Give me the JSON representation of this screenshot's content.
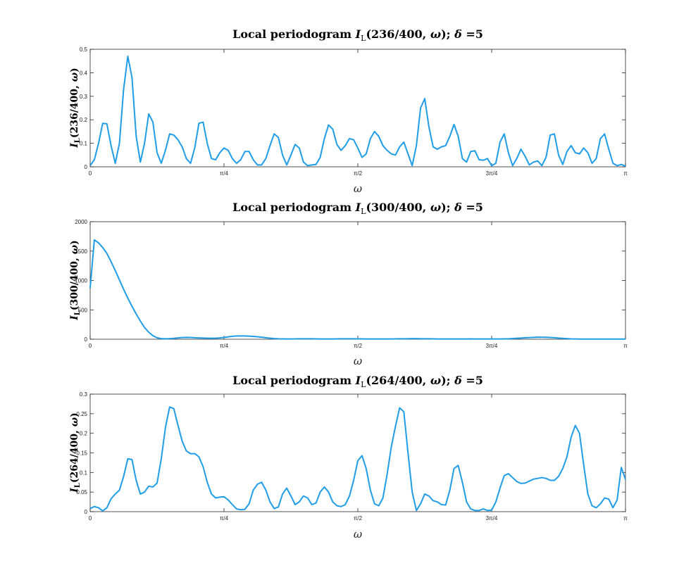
{
  "chart_data": [
    {
      "type": "line",
      "title": "Local periodogram I_L(236/400, ω);   δ =5",
      "ylabel": "I_L(236/400, ω)",
      "xlabel": "ω",
      "xlim": [
        0,
        3.1416
      ],
      "ylim": [
        0,
        0.5
      ],
      "xticks": [
        0,
        0.7854,
        1.5708,
        2.3562,
        3.1416
      ],
      "xtick_labels": [
        "0",
        "π/4",
        "π/2",
        "3π/4",
        "π"
      ],
      "yticks": [
        0,
        0.1,
        0.2,
        0.3,
        0.4,
        0.5
      ],
      "ytick_labels": [
        "0",
        "0.1",
        "0.2",
        "0.3",
        "0.4",
        "0.5"
      ],
      "grid": false,
      "color": "#1f9de8",
      "y": [
        0.005,
        0.03,
        0.1,
        0.185,
        0.183,
        0.09,
        0.015,
        0.1,
        0.33,
        0.47,
        0.38,
        0.13,
        0.02,
        0.1,
        0.225,
        0.19,
        0.06,
        0.015,
        0.07,
        0.14,
        0.135,
        0.115,
        0.085,
        0.035,
        0.015,
        0.08,
        0.185,
        0.19,
        0.1,
        0.035,
        0.03,
        0.06,
        0.08,
        0.07,
        0.035,
        0.015,
        0.03,
        0.065,
        0.065,
        0.03,
        0.008,
        0.008,
        0.035,
        0.09,
        0.14,
        0.125,
        0.05,
        0.008,
        0.05,
        0.095,
        0.08,
        0.02,
        0.005,
        0.008,
        0.01,
        0.04,
        0.12,
        0.178,
        0.16,
        0.095,
        0.07,
        0.09,
        0.12,
        0.115,
        0.08,
        0.04,
        0.055,
        0.12,
        0.15,
        0.13,
        0.09,
        0.07,
        0.055,
        0.05,
        0.085,
        0.105,
        0.055,
        0.005,
        0.09,
        0.25,
        0.29,
        0.17,
        0.085,
        0.075,
        0.085,
        0.09,
        0.13,
        0.18,
        0.13,
        0.035,
        0.02,
        0.065,
        0.068,
        0.03,
        0.028,
        0.035,
        0.005,
        0.015,
        0.105,
        0.14,
        0.06,
        0.005,
        0.035,
        0.075,
        0.045,
        0.008,
        0.02,
        0.025,
        0.005,
        0.04,
        0.135,
        0.14,
        0.05,
        0.01,
        0.065,
        0.09,
        0.06,
        0.055,
        0.08,
        0.06,
        0.015,
        0.035,
        0.12,
        0.14,
        0.075,
        0.015,
        0.005,
        0.01,
        0.003
      ]
    },
    {
      "type": "line",
      "title": "Local periodogram I_L(300/400, ω);   δ =5",
      "ylabel": "I_L(300/400, ω)",
      "xlabel": "ω",
      "xlim": [
        0,
        3.1416
      ],
      "ylim": [
        0,
        2000
      ],
      "xticks": [
        0,
        0.7854,
        1.5708,
        2.3562,
        3.1416
      ],
      "xtick_labels": [
        "0",
        "π/4",
        "π/2",
        "3π/4",
        "π"
      ],
      "yticks": [
        0,
        500,
        1000,
        1500,
        2000
      ],
      "ytick_labels": [
        "0",
        "500",
        "1000",
        "1500",
        "2000"
      ],
      "grid": false,
      "color": "#1f9de8",
      "y": [
        870,
        1690,
        1640,
        1560,
        1460,
        1320,
        1170,
        1010,
        850,
        700,
        560,
        430,
        310,
        200,
        120,
        60,
        25,
        10,
        8,
        10,
        15,
        22,
        28,
        32,
        30,
        26,
        22,
        20,
        18,
        17,
        18,
        22,
        30,
        40,
        50,
        55,
        56,
        55,
        52,
        48,
        42,
        34,
        26,
        18,
        12,
        8,
        6,
        5,
        5,
        6,
        7,
        8,
        8,
        7,
        6,
        5,
        5,
        4,
        5,
        6,
        7,
        8,
        8,
        7,
        6,
        6,
        5,
        5,
        5,
        5,
        4,
        4,
        5,
        6,
        7,
        8,
        9,
        10,
        10,
        9,
        8,
        7,
        6,
        5,
        5,
        5,
        5,
        4,
        4,
        5,
        5,
        6,
        5,
        5,
        4,
        4,
        4,
        4,
        5,
        6,
        8,
        12,
        16,
        20,
        25,
        29,
        32,
        34,
        35,
        33,
        30,
        26,
        20,
        15,
        10,
        6,
        4,
        3,
        3,
        3,
        3,
        3,
        3,
        3,
        3,
        3,
        3,
        3,
        3
      ]
    },
    {
      "type": "line",
      "title": "Local periodogram I_L(264/400, ω);   δ =5",
      "ylabel": "I_L(264/400, ω)",
      "xlabel": "ω",
      "xlim": [
        0,
        3.1416
      ],
      "ylim": [
        0,
        0.3
      ],
      "xticks": [
        0,
        0.7854,
        1.5708,
        2.3562,
        3.1416
      ],
      "xtick_labels": [
        "0",
        "π/4",
        "π/2",
        "3π/4",
        "π"
      ],
      "yticks": [
        0,
        0.05,
        0.1,
        0.15,
        0.2,
        0.25,
        0.3
      ],
      "ytick_labels": [
        "0",
        "0.05",
        "0.1",
        "0.15",
        "0.2",
        "0.25",
        "0.3"
      ],
      "grid": false,
      "color": "#1f9de8",
      "y": [
        0.008,
        0.013,
        0.01,
        0.002,
        0.01,
        0.033,
        0.045,
        0.055,
        0.09,
        0.135,
        0.133,
        0.08,
        0.045,
        0.05,
        0.065,
        0.063,
        0.073,
        0.135,
        0.215,
        0.267,
        0.263,
        0.22,
        0.18,
        0.155,
        0.148,
        0.148,
        0.14,
        0.115,
        0.075,
        0.045,
        0.035,
        0.037,
        0.038,
        0.03,
        0.018,
        0.007,
        0.005,
        0.006,
        0.02,
        0.055,
        0.07,
        0.075,
        0.055,
        0.025,
        0.008,
        0.012,
        0.045,
        0.06,
        0.04,
        0.018,
        0.025,
        0.04,
        0.035,
        0.018,
        0.022,
        0.05,
        0.063,
        0.05,
        0.025,
        0.015,
        0.013,
        0.018,
        0.04,
        0.08,
        0.13,
        0.143,
        0.11,
        0.055,
        0.02,
        0.015,
        0.035,
        0.095,
        0.165,
        0.218,
        0.265,
        0.255,
        0.15,
        0.05,
        0.003,
        0.02,
        0.045,
        0.04,
        0.028,
        0.025,
        0.018,
        0.017,
        0.055,
        0.11,
        0.118,
        0.075,
        0.025,
        0.007,
        0.003,
        0.003,
        0.007,
        0.003,
        0.004,
        0.025,
        0.06,
        0.092,
        0.097,
        0.087,
        0.077,
        0.072,
        0.073,
        0.078,
        0.083,
        0.085,
        0.087,
        0.085,
        0.08,
        0.08,
        0.09,
        0.11,
        0.14,
        0.19,
        0.22,
        0.2,
        0.12,
        0.045,
        0.015,
        0.01,
        0.02,
        0.035,
        0.032,
        0.01,
        0.03,
        0.113,
        0.082
      ]
    }
  ]
}
